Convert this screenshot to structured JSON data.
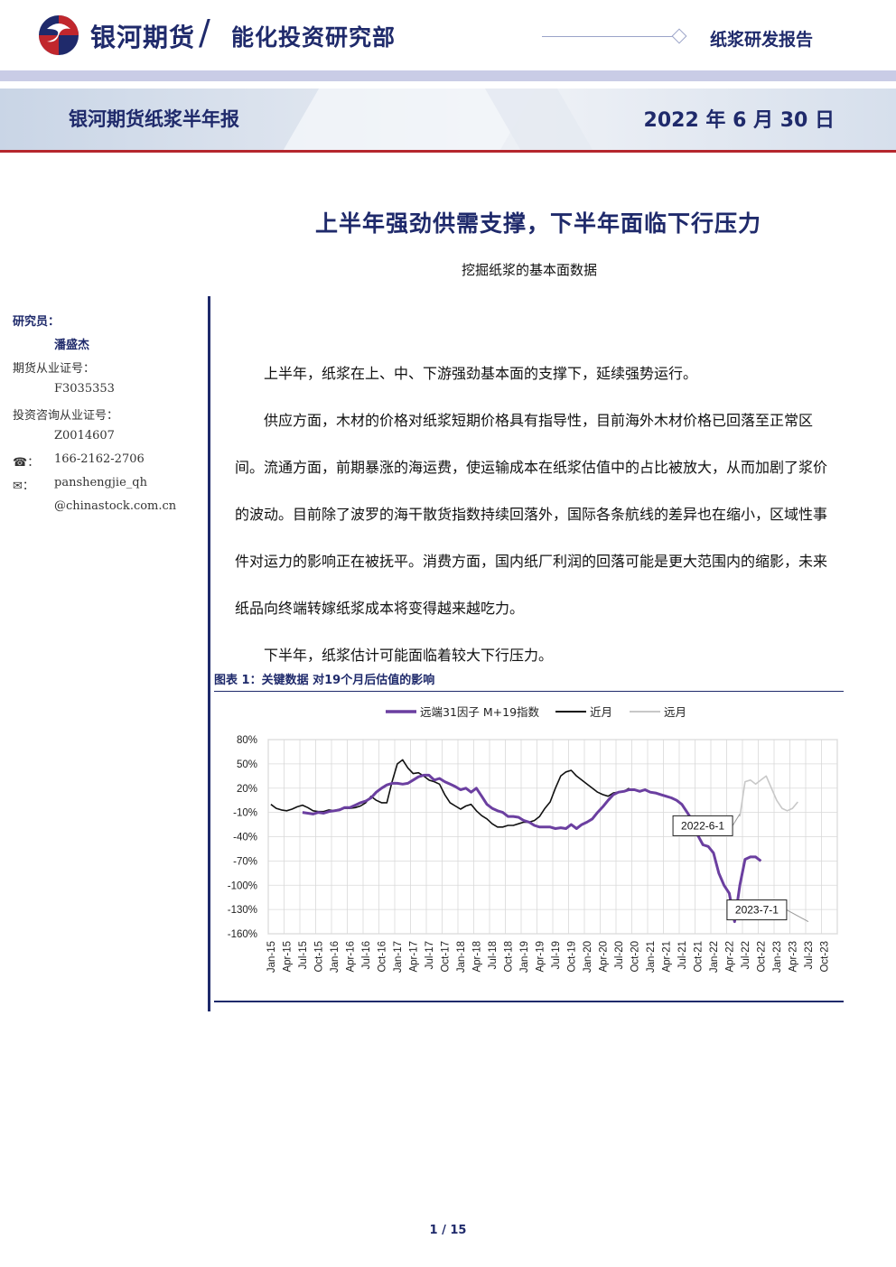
{
  "header": {
    "brand": "银河期货",
    "department": "能化投资研究部",
    "report_type": "纸浆研发报告"
  },
  "banner": {
    "title": "银河期货纸浆半年报",
    "date": "2022 年 6 月 30 日"
  },
  "title": "上半年强劲供需支撑，下半年面临下行压力",
  "subtitle": "挖掘纸浆的基本面数据",
  "sidebar": {
    "researcher_label": "研究员：",
    "researcher_name": "潘盛杰",
    "futures_cert_label": "期货从业证号：",
    "futures_cert": "F3035353",
    "invest_cert_label": "投资咨询从业证号：",
    "invest_cert": "Z0014607",
    "phone_icon": "☎：",
    "phone": "166-2162-2706",
    "email_icon": "✉：",
    "email_user": "panshengjie_qh",
    "email_domain": "@chinastock.com.cn"
  },
  "body": {
    "paragraphs": [
      "上半年，纸浆在上、中、下游强劲基本面的支撑下，延续强势运行。",
      "供应方面，木材的价格对纸浆短期价格具有指导性，目前海外木材价格已回落至正常区间。流通方面，前期暴涨的海运费，使运输成本在纸浆估值中的占比被放大，从而加剧了浆价的波动。目前除了波罗的海干散货指数持续回落外，国际各条航线的差异也在缩小，区域性事件对运力的影响正在被抚平。消费方面，国内纸厂利润的回落可能是更大范围内的缩影，未来纸品向终端转嫁纸浆成本将变得越来越吃力。",
      "下半年，纸浆估计可能面临着较大下行压力。"
    ]
  },
  "chart": {
    "caption": "图表 1：关键数据 对19个月后估值的影响"
  },
  "chart_data": {
    "type": "line",
    "title": "",
    "ylim": [
      -160,
      80
    ],
    "yticks": [
      "80%",
      "50%",
      "20%",
      "-10%",
      "-40%",
      "-70%",
      "-100%",
      "-130%",
      "-160%"
    ],
    "x_tick_labels": [
      "Jan-15",
      "Apr-15",
      "Jul-15",
      "Oct-15",
      "Jan-16",
      "Apr-16",
      "Jul-16",
      "Oct-16",
      "Jan-17",
      "Apr-17",
      "Jul-17",
      "Oct-17",
      "Jan-18",
      "Apr-18",
      "Jul-18",
      "Oct-18",
      "Jan-19",
      "Apr-19",
      "Jul-19",
      "Oct-19",
      "Jan-20",
      "Apr-20",
      "Jul-20",
      "Oct-20",
      "Jan-21",
      "Apr-21",
      "Jul-21",
      "Oct-21",
      "Jan-22",
      "Apr-22",
      "Jul-22",
      "Oct-22",
      "Jan-23",
      "Apr-23",
      "Jul-23",
      "Oct-23"
    ],
    "legend": [
      "远端31因子 M+19指数",
      "近月",
      "远月"
    ],
    "annotations": [
      {
        "text": "2022-6-1",
        "month_index": 89,
        "value": -12
      },
      {
        "text": "2023-7-1",
        "month_index": 102,
        "value": -145
      }
    ],
    "series": [
      {
        "name": "远端31因子 M+19指数",
        "color": "#6b3fa0",
        "start_month_index": 6,
        "values": [
          -10,
          -11,
          -12,
          -10,
          -11,
          -9,
          -8,
          -7,
          -4,
          -4,
          -1,
          2,
          4,
          8,
          15,
          20,
          24,
          26,
          26,
          25,
          26,
          30,
          34,
          36,
          36,
          30,
          32,
          28,
          25,
          22,
          18,
          20,
          15,
          20,
          10,
          0,
          -5,
          -8,
          -10,
          -15,
          -15,
          -16,
          -20,
          -22,
          -26,
          -28,
          -28,
          -28,
          -30,
          -29,
          -30,
          -25,
          -30,
          -25,
          -22,
          -18,
          -10,
          -3,
          5,
          12,
          15,
          16,
          18,
          18,
          16,
          18,
          15,
          14,
          12,
          10,
          8,
          5,
          0,
          -10,
          -20,
          -38,
          -50,
          -52,
          -60,
          -85,
          -100,
          -110,
          -145,
          -100,
          -68,
          -65,
          -65,
          -70
        ]
      },
      {
        "name": "近月",
        "color": "#111111",
        "start_month_index": 0,
        "values": [
          0,
          -5,
          -7,
          -8,
          -6,
          -3,
          -1,
          -4,
          -8,
          -9,
          -9,
          -7,
          -8,
          -6,
          -5,
          -5,
          -4,
          -2,
          2,
          10,
          5,
          2,
          2,
          28,
          50,
          55,
          45,
          38,
          39,
          35,
          30,
          28,
          25,
          12,
          2,
          -2,
          -6,
          -2,
          0,
          -8,
          -14,
          -18,
          -24,
          -28,
          -28,
          -26,
          -26,
          -24,
          -22,
          -22,
          -20,
          -15,
          -5,
          3,
          20,
          35,
          40,
          42,
          35,
          30,
          25,
          20,
          15,
          12,
          10,
          14,
          15,
          16,
          20
        ]
      },
      {
        "name": "远月",
        "color": "#c8c8c8",
        "start_month_index": 89,
        "values": [
          -15,
          28,
          30,
          25,
          30,
          35,
          20,
          5,
          -5,
          -8,
          -5,
          3
        ]
      }
    ]
  },
  "footer": {
    "page": "1 / 15"
  }
}
